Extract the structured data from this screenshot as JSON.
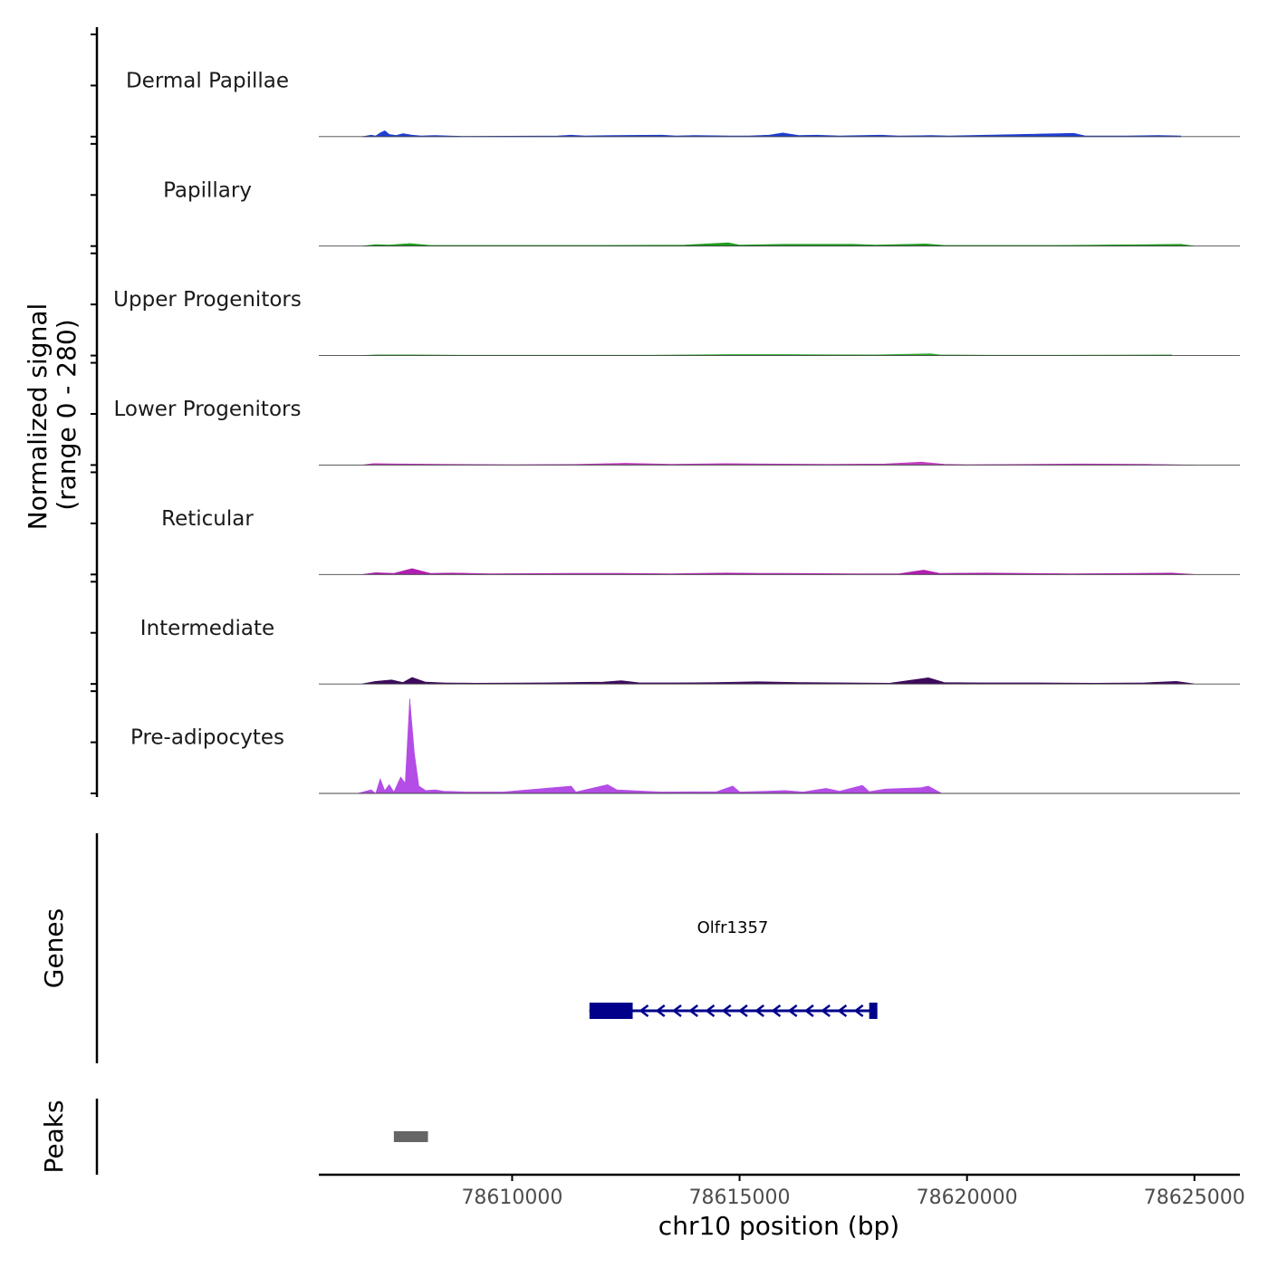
{
  "chart_data": {
    "type": "area",
    "title": "",
    "chromosome": "chr10",
    "xlabel": "chr10 position (bp)",
    "xlim": [
      78605750,
      78626000
    ],
    "x_ticks": [
      78610000,
      78615000,
      78620000,
      78625000
    ],
    "x_tick_labels": [
      "78610000",
      "78615000",
      "78620000",
      "78625000"
    ],
    "ylabel_line1": "Normalized signal",
    "ylabel_line2": "(range 0 - 280)",
    "ylim": [
      0,
      280
    ],
    "tracks": [
      {
        "name": "Dermal Papillae",
        "color": "#1f3fcf",
        "points": [
          [
            78606700,
            0
          ],
          [
            78606900,
            4
          ],
          [
            78607000,
            2
          ],
          [
            78607100,
            10
          ],
          [
            78607200,
            16
          ],
          [
            78607300,
            6
          ],
          [
            78607450,
            3
          ],
          [
            78607600,
            8
          ],
          [
            78607800,
            4
          ],
          [
            78608000,
            2
          ],
          [
            78608300,
            3
          ],
          [
            78608600,
            2
          ],
          [
            78608900,
            1
          ],
          [
            78611000,
            2
          ],
          [
            78611300,
            4
          ],
          [
            78611600,
            2
          ],
          [
            78612200,
            3
          ],
          [
            78613300,
            4
          ],
          [
            78613600,
            2
          ],
          [
            78614000,
            3
          ],
          [
            78614800,
            2
          ],
          [
            78615200,
            2
          ],
          [
            78615650,
            4
          ],
          [
            78615950,
            10
          ],
          [
            78616300,
            3
          ],
          [
            78616700,
            4
          ],
          [
            78617200,
            2
          ],
          [
            78617700,
            3
          ],
          [
            78618100,
            4
          ],
          [
            78618500,
            2
          ],
          [
            78619200,
            3
          ],
          [
            78619600,
            2
          ],
          [
            78622350,
            9
          ],
          [
            78622600,
            2
          ],
          [
            78623500,
            2
          ],
          [
            78624200,
            3
          ],
          [
            78624700,
            2
          ]
        ]
      },
      {
        "name": "Papillary",
        "color": "#1f9e1f",
        "points": [
          [
            78606700,
            0
          ],
          [
            78607000,
            4
          ],
          [
            78607300,
            3
          ],
          [
            78607750,
            7
          ],
          [
            78608200,
            2
          ],
          [
            78609000,
            2
          ],
          [
            78610800,
            2
          ],
          [
            78612000,
            2
          ],
          [
            78613800,
            3
          ],
          [
            78614750,
            9
          ],
          [
            78615000,
            3
          ],
          [
            78616000,
            5
          ],
          [
            78617500,
            5
          ],
          [
            78618000,
            3
          ],
          [
            78619100,
            6
          ],
          [
            78619500,
            2
          ],
          [
            78622000,
            2
          ],
          [
            78624700,
            5
          ],
          [
            78625000,
            0
          ]
        ]
      },
      {
        "name": "Upper Progenitors",
        "color": "#2fae2f",
        "points": [
          [
            78606700,
            0
          ],
          [
            78607000,
            2
          ],
          [
            78607800,
            2
          ],
          [
            78609000,
            1
          ],
          [
            78611000,
            1
          ],
          [
            78613000,
            1
          ],
          [
            78614800,
            3
          ],
          [
            78616000,
            3
          ],
          [
            78618000,
            2
          ],
          [
            78619200,
            5
          ],
          [
            78619400,
            2
          ],
          [
            78620500,
            1
          ],
          [
            78622000,
            1
          ],
          [
            78624500,
            2
          ]
        ]
      },
      {
        "name": "Lower Progenitors",
        "color": "#bf3fbf",
        "points": [
          [
            78606700,
            0
          ],
          [
            78606950,
            4
          ],
          [
            78607500,
            3
          ],
          [
            78608500,
            2
          ],
          [
            78610000,
            1
          ],
          [
            78611500,
            2
          ],
          [
            78612500,
            5
          ],
          [
            78613500,
            2
          ],
          [
            78614700,
            4
          ],
          [
            78615500,
            3
          ],
          [
            78617000,
            2
          ],
          [
            78618200,
            3
          ],
          [
            78619000,
            8
          ],
          [
            78619500,
            2
          ],
          [
            78620000,
            1
          ],
          [
            78622500,
            3
          ],
          [
            78624000,
            2
          ],
          [
            78625000,
            0
          ]
        ]
      },
      {
        "name": "Reticular",
        "color": "#b01fb0",
        "points": [
          [
            78606700,
            0
          ],
          [
            78607000,
            5
          ],
          [
            78607400,
            3
          ],
          [
            78607800,
            16
          ],
          [
            78608200,
            3
          ],
          [
            78608700,
            4
          ],
          [
            78609500,
            2
          ],
          [
            78611200,
            3
          ],
          [
            78612400,
            3
          ],
          [
            78613500,
            2
          ],
          [
            78614700,
            4
          ],
          [
            78615500,
            3
          ],
          [
            78616000,
            3
          ],
          [
            78617500,
            2
          ],
          [
            78618500,
            2
          ],
          [
            78619050,
            12
          ],
          [
            78619400,
            3
          ],
          [
            78620400,
            4
          ],
          [
            78622300,
            2
          ],
          [
            78623700,
            3
          ],
          [
            78624500,
            4
          ],
          [
            78625000,
            0
          ]
        ]
      },
      {
        "name": "Intermediate",
        "color": "#3d0a5c",
        "points": [
          [
            78606700,
            0
          ],
          [
            78607000,
            7
          ],
          [
            78607350,
            11
          ],
          [
            78607600,
            4
          ],
          [
            78607800,
            18
          ],
          [
            78608100,
            5
          ],
          [
            78608500,
            3
          ],
          [
            78609200,
            2
          ],
          [
            78610700,
            3
          ],
          [
            78612000,
            5
          ],
          [
            78612400,
            9
          ],
          [
            78612800,
            3
          ],
          [
            78613600,
            3
          ],
          [
            78614500,
            4
          ],
          [
            78615400,
            6
          ],
          [
            78616300,
            4
          ],
          [
            78617300,
            3
          ],
          [
            78618300,
            2
          ],
          [
            78619150,
            17
          ],
          [
            78619500,
            4
          ],
          [
            78620300,
            3
          ],
          [
            78621500,
            3
          ],
          [
            78622800,
            2
          ],
          [
            78623900,
            3
          ],
          [
            78624600,
            7
          ],
          [
            78625000,
            0
          ]
        ]
      },
      {
        "name": "Pre-adipocytes",
        "color": "#b34de6",
        "points": [
          [
            78606600,
            0
          ],
          [
            78606900,
            10
          ],
          [
            78607000,
            0
          ],
          [
            78607100,
            40
          ],
          [
            78607200,
            8
          ],
          [
            78607300,
            24
          ],
          [
            78607400,
            4
          ],
          [
            78607550,
            45
          ],
          [
            78607650,
            28
          ],
          [
            78607750,
            260
          ],
          [
            78607850,
            110
          ],
          [
            78607950,
            20
          ],
          [
            78608100,
            8
          ],
          [
            78608300,
            10
          ],
          [
            78608500,
            6
          ],
          [
            78608800,
            5
          ],
          [
            78609000,
            4
          ],
          [
            78609800,
            4
          ],
          [
            78611300,
            20
          ],
          [
            78611400,
            4
          ],
          [
            78612100,
            24
          ],
          [
            78612300,
            10
          ],
          [
            78612900,
            6
          ],
          [
            78613300,
            4
          ],
          [
            78614500,
            5
          ],
          [
            78614850,
            20
          ],
          [
            78615000,
            4
          ],
          [
            78615600,
            6
          ],
          [
            78616000,
            8
          ],
          [
            78616400,
            4
          ],
          [
            78616900,
            14
          ],
          [
            78617200,
            6
          ],
          [
            78617700,
            22
          ],
          [
            78617850,
            5
          ],
          [
            78618200,
            12
          ],
          [
            78619000,
            16
          ],
          [
            78619150,
            20
          ],
          [
            78619300,
            10
          ],
          [
            78619450,
            0
          ]
        ]
      }
    ],
    "gene_track_label": "Genes",
    "gene": {
      "name": "Olfr1357",
      "strand": "-",
      "start": 78611700,
      "end": 78618000,
      "exons": [
        [
          78611700,
          78612650
        ],
        [
          78617850,
          78618000
        ]
      ],
      "color": "#00008b"
    },
    "peak_track_label": "Peaks",
    "peaks": [
      [
        78607400,
        78608150
      ]
    ],
    "peak_color": "#666666"
  }
}
